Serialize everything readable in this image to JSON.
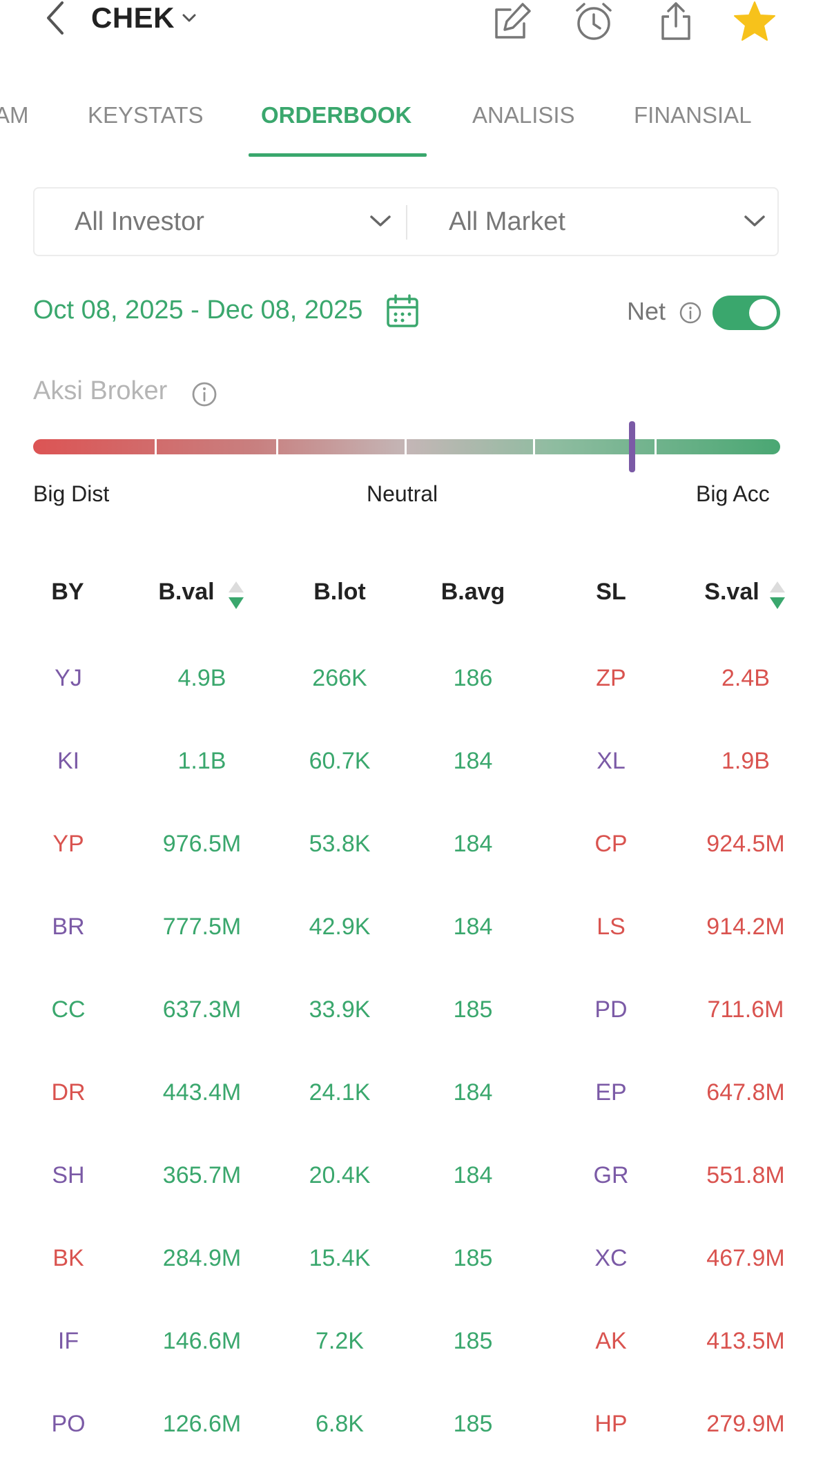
{
  "header": {
    "ticker": "CHEK",
    "icons": [
      "back-chevron-icon",
      "dropdown-chevron-icon",
      "edit-icon",
      "alarm-clock-icon",
      "share-icon",
      "star-icon"
    ],
    "star_color": "#f7c21b"
  },
  "tabs": [
    {
      "label": "AM",
      "active": false
    },
    {
      "label": "KEYSTATS",
      "active": false
    },
    {
      "label": "ORDERBOOK",
      "active": true
    },
    {
      "label": "ANALISIS",
      "active": false
    },
    {
      "label": "FINANSIAL",
      "active": false
    }
  ],
  "filters": {
    "investor": "All Investor",
    "market": "All Market"
  },
  "date_range": {
    "label": "Oct 08, 2025 - Dec 08, 2025"
  },
  "net": {
    "label": "Net",
    "enabled": true
  },
  "broker_action": {
    "title": "Aksi Broker",
    "scale": {
      "left": "Big Dist",
      "center": "Neutral",
      "right": "Big Acc"
    },
    "marker_position": 0.8,
    "colors": {
      "dist": "#dc5454",
      "neutral": "#c4b6b6",
      "acc": "#4aa773",
      "marker": "#7b5aa6"
    }
  },
  "table": {
    "columns": [
      "BY",
      "B.val",
      "B.lot",
      "B.avg",
      "SL",
      "S.val"
    ],
    "rows": [
      {
        "by": "YJ",
        "by_color": "purple",
        "bval": "4.9B",
        "blot": "266K",
        "bavg": "186",
        "sl": "ZP",
        "sl_color": "red",
        "sval": "2.4B"
      },
      {
        "by": "KI",
        "by_color": "purple",
        "bval": "1.1B",
        "blot": "60.7K",
        "bavg": "184",
        "sl": "XL",
        "sl_color": "purple",
        "sval": "1.9B"
      },
      {
        "by": "YP",
        "by_color": "red",
        "bval": "976.5M",
        "blot": "53.8K",
        "bavg": "184",
        "sl": "CP",
        "sl_color": "red",
        "sval": "924.5M"
      },
      {
        "by": "BR",
        "by_color": "purple",
        "bval": "777.5M",
        "blot": "42.9K",
        "bavg": "184",
        "sl": "LS",
        "sl_color": "red",
        "sval": "914.2M"
      },
      {
        "by": "CC",
        "by_color": "green",
        "bval": "637.3M",
        "blot": "33.9K",
        "bavg": "185",
        "sl": "PD",
        "sl_color": "purple",
        "sval": "711.6M"
      },
      {
        "by": "DR",
        "by_color": "red",
        "bval": "443.4M",
        "blot": "24.1K",
        "bavg": "184",
        "sl": "EP",
        "sl_color": "purple",
        "sval": "647.8M"
      },
      {
        "by": "SH",
        "by_color": "purple",
        "bval": "365.7M",
        "blot": "20.4K",
        "bavg": "184",
        "sl": "GR",
        "sl_color": "purple",
        "sval": "551.8M"
      },
      {
        "by": "BK",
        "by_color": "red",
        "bval": "284.9M",
        "blot": "15.4K",
        "bavg": "185",
        "sl": "XC",
        "sl_color": "purple",
        "sval": "467.9M"
      },
      {
        "by": "IF",
        "by_color": "purple",
        "bval": "146.6M",
        "blot": "7.2K",
        "bavg": "185",
        "sl": "AK",
        "sl_color": "red",
        "sval": "413.5M"
      },
      {
        "by": "PO",
        "by_color": "purple",
        "bval": "126.6M",
        "blot": "6.8K",
        "bavg": "185",
        "sl": "HP",
        "sl_color": "red",
        "sval": "279.9M"
      }
    ]
  },
  "colors": {
    "accent": "#3aa76d",
    "buy": "#3aa76d",
    "sell": "#d9534f",
    "broker_purple": "#7b5aa6"
  }
}
